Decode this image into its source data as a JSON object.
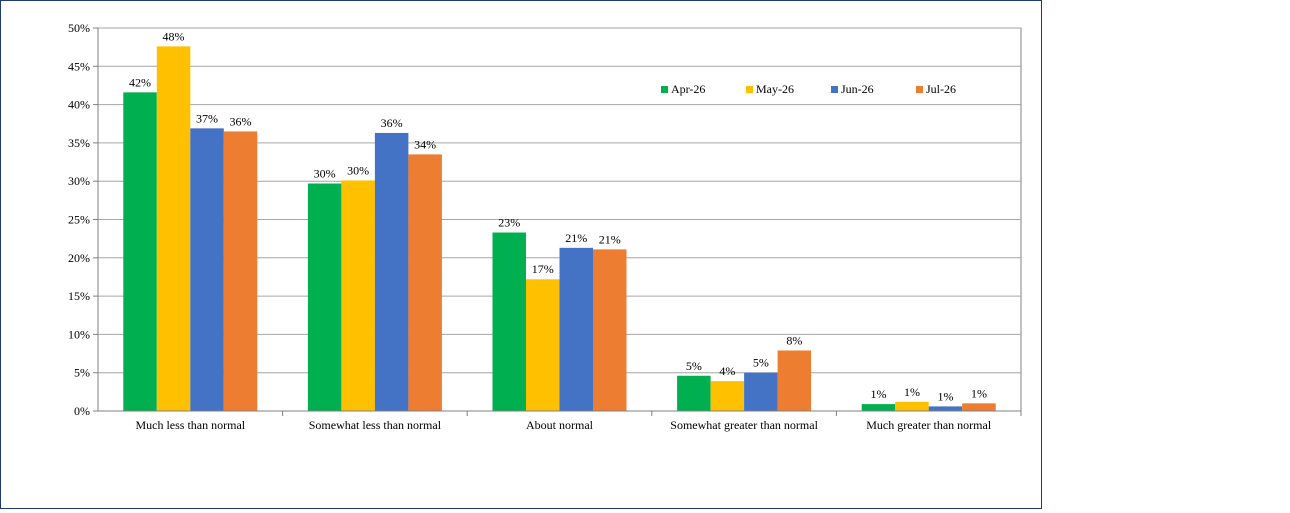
{
  "chart_data": {
    "type": "bar",
    "categories": [
      "Much less than normal",
      "Somewhat less than normal",
      "About normal",
      "Somewhat greater than normal",
      "Much greater than normal"
    ],
    "series": [
      {
        "name": "Apr-26",
        "color": "#00b050",
        "values": [
          41.6,
          29.7,
          23.3,
          4.6,
          0.9
        ],
        "labels": [
          "42%",
          "30%",
          "23%",
          "5%",
          "1%"
        ]
      },
      {
        "name": "May-26",
        "color": "#ffc000",
        "values": [
          47.6,
          30.1,
          17.2,
          3.9,
          1.2
        ],
        "labels": [
          "48%",
          "30%",
          "17%",
          "4%",
          "1%"
        ]
      },
      {
        "name": "Jun-26",
        "color": "#4472c4",
        "values": [
          36.9,
          36.3,
          21.3,
          5.0,
          0.6
        ],
        "labels": [
          "37%",
          "36%",
          "21%",
          "5%",
          "1%"
        ]
      },
      {
        "name": "Jul-26",
        "color": "#ed7d31",
        "values": [
          36.5,
          33.5,
          21.1,
          7.9,
          1.0
        ],
        "labels": [
          "36%",
          "34%",
          "21%",
          "8%",
          "1%"
        ]
      }
    ],
    "ylim": [
      0,
      50
    ],
    "yticks": [
      "0%",
      "5%",
      "10%",
      "15%",
      "20%",
      "25%",
      "30%",
      "35%",
      "40%",
      "45%",
      "50%"
    ],
    "ytick_values": [
      0,
      5,
      10,
      15,
      20,
      25,
      30,
      35,
      40,
      45,
      50
    ],
    "grid": true,
    "legend_position": "top-right",
    "title": "",
    "xlabel": "",
    "ylabel": ""
  }
}
